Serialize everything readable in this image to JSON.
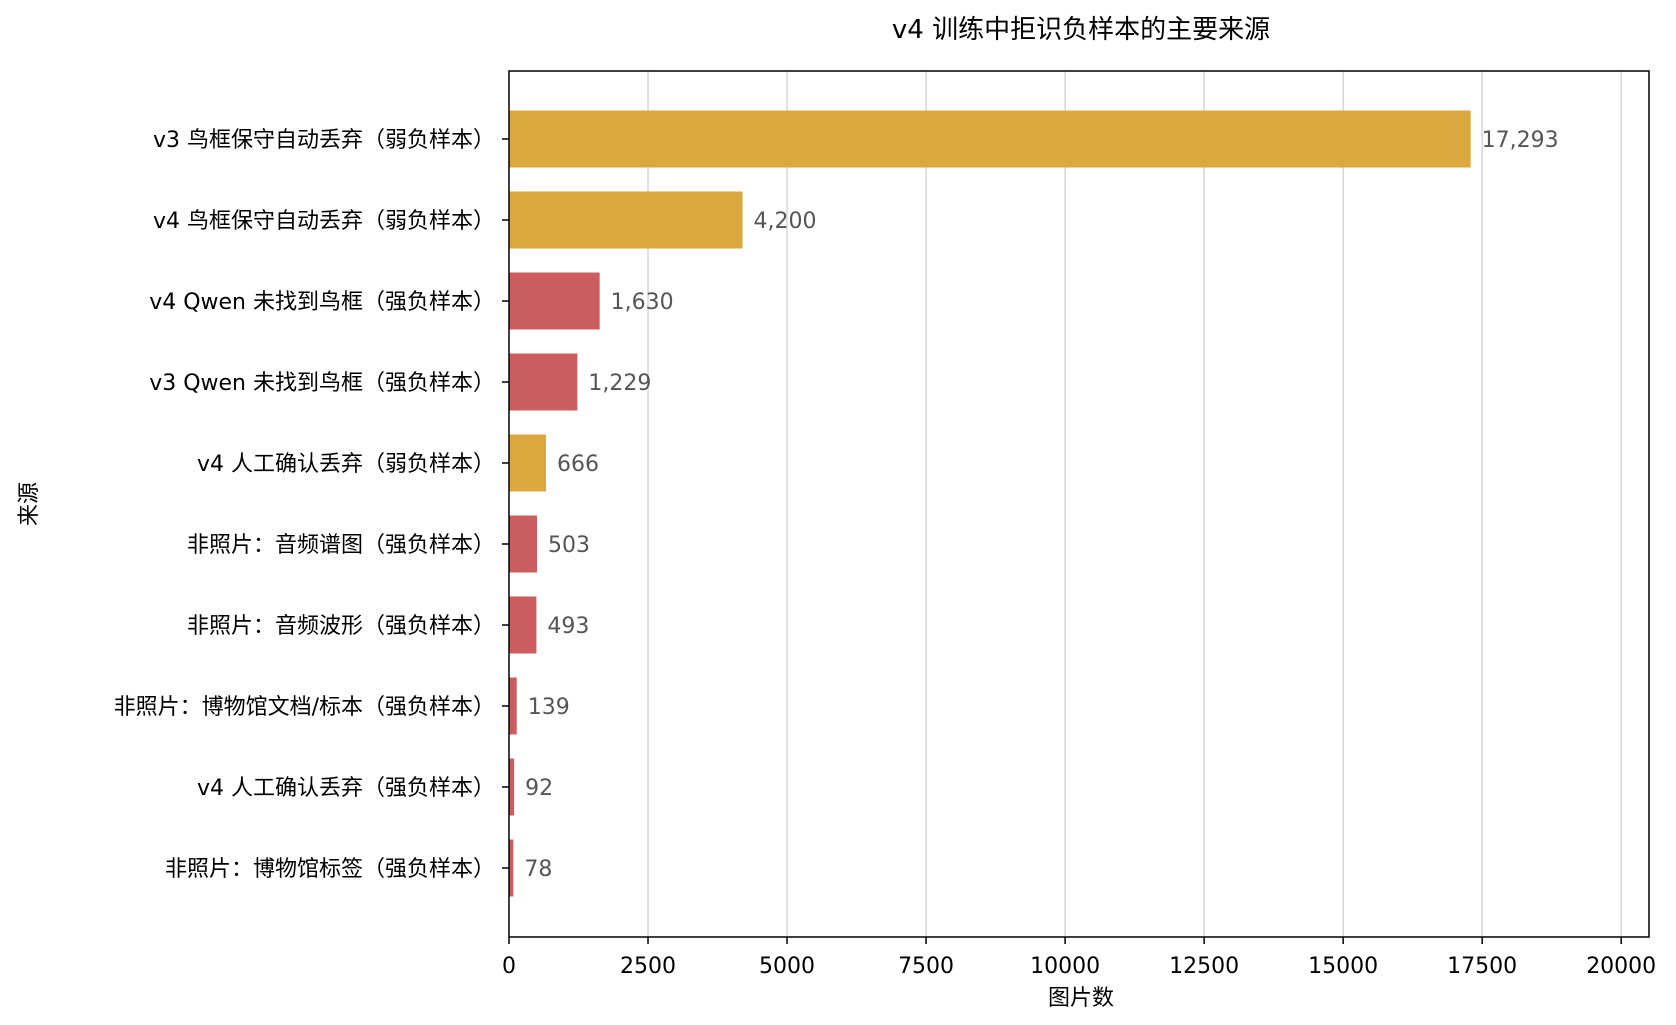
{
  "chart_data": {
    "type": "bar",
    "orientation": "horizontal",
    "title": "v4 训练中拒识负样本的主要来源",
    "xlabel": "图片数",
    "ylabel": "来源",
    "xlim": [
      0,
      20500
    ],
    "xticks": [
      0,
      2500,
      5000,
      7500,
      10000,
      12500,
      15000,
      17500,
      20000
    ],
    "grid": "x",
    "legend": "none",
    "categories": [
      "v3 鸟框保守自动丢弃（弱负样本）",
      "v4 鸟框保守自动丢弃（弱负样本）",
      "v4 Qwen 未找到鸟框（强负样本）",
      "v3 Qwen 未找到鸟框（强负样本）",
      "v4 人工确认丢弃（弱负样本）",
      "非照片：音频谱图（强负样本）",
      "非照片：音频波形（强负样本）",
      "非照片：博物馆文档/标本（强负样本）",
      "v4 人工确认丢弃（强负样本）",
      "非照片：博物馆标签（强负样本）"
    ],
    "values": [
      17293,
      4200,
      1630,
      1229,
      666,
      503,
      493,
      139,
      92,
      78
    ],
    "value_labels": [
      "17,293",
      "4,200",
      "1,630",
      "1,229",
      "666",
      "503",
      "493",
      "139",
      "92",
      "78"
    ],
    "bar_kind": [
      "weak",
      "weak",
      "strong",
      "strong",
      "weak",
      "strong",
      "strong",
      "strong",
      "strong",
      "strong"
    ]
  },
  "colors": {
    "weak": "#DAA83E",
    "strong": "#CB5D60",
    "grid": "#cccccc",
    "axis": "#000000"
  }
}
